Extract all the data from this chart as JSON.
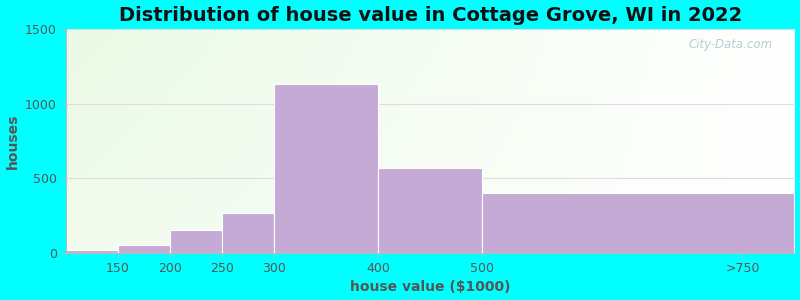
{
  "title": "Distribution of house value in Cottage Grove, WI in 2022",
  "xlabel": "house value ($1000)",
  "ylabel": "houses",
  "tick_labels": [
    "150",
    "200",
    "250",
    "300",
    "400",
    "500",
    ">750"
  ],
  "tick_positions": [
    150,
    200,
    250,
    300,
    400,
    500,
    750
  ],
  "bar_lefts": [
    100,
    150,
    200,
    250,
    300,
    400,
    500
  ],
  "bar_rights": [
    150,
    200,
    250,
    300,
    400,
    500,
    800
  ],
  "values": [
    18,
    55,
    150,
    270,
    1130,
    570,
    400
  ],
  "bar_color": "#c4aad4",
  "bar_edge_color": "#ffffff",
  "ylim": [
    0,
    1500
  ],
  "xlim": [
    100,
    800
  ],
  "yticks": [
    0,
    500,
    1000,
    1500
  ],
  "background_color": "#00ffff",
  "grid_color": "#dddddd",
  "watermark": "City-Data.com",
  "title_fontsize": 14,
  "axis_label_fontsize": 10,
  "tick_fontsize": 9
}
